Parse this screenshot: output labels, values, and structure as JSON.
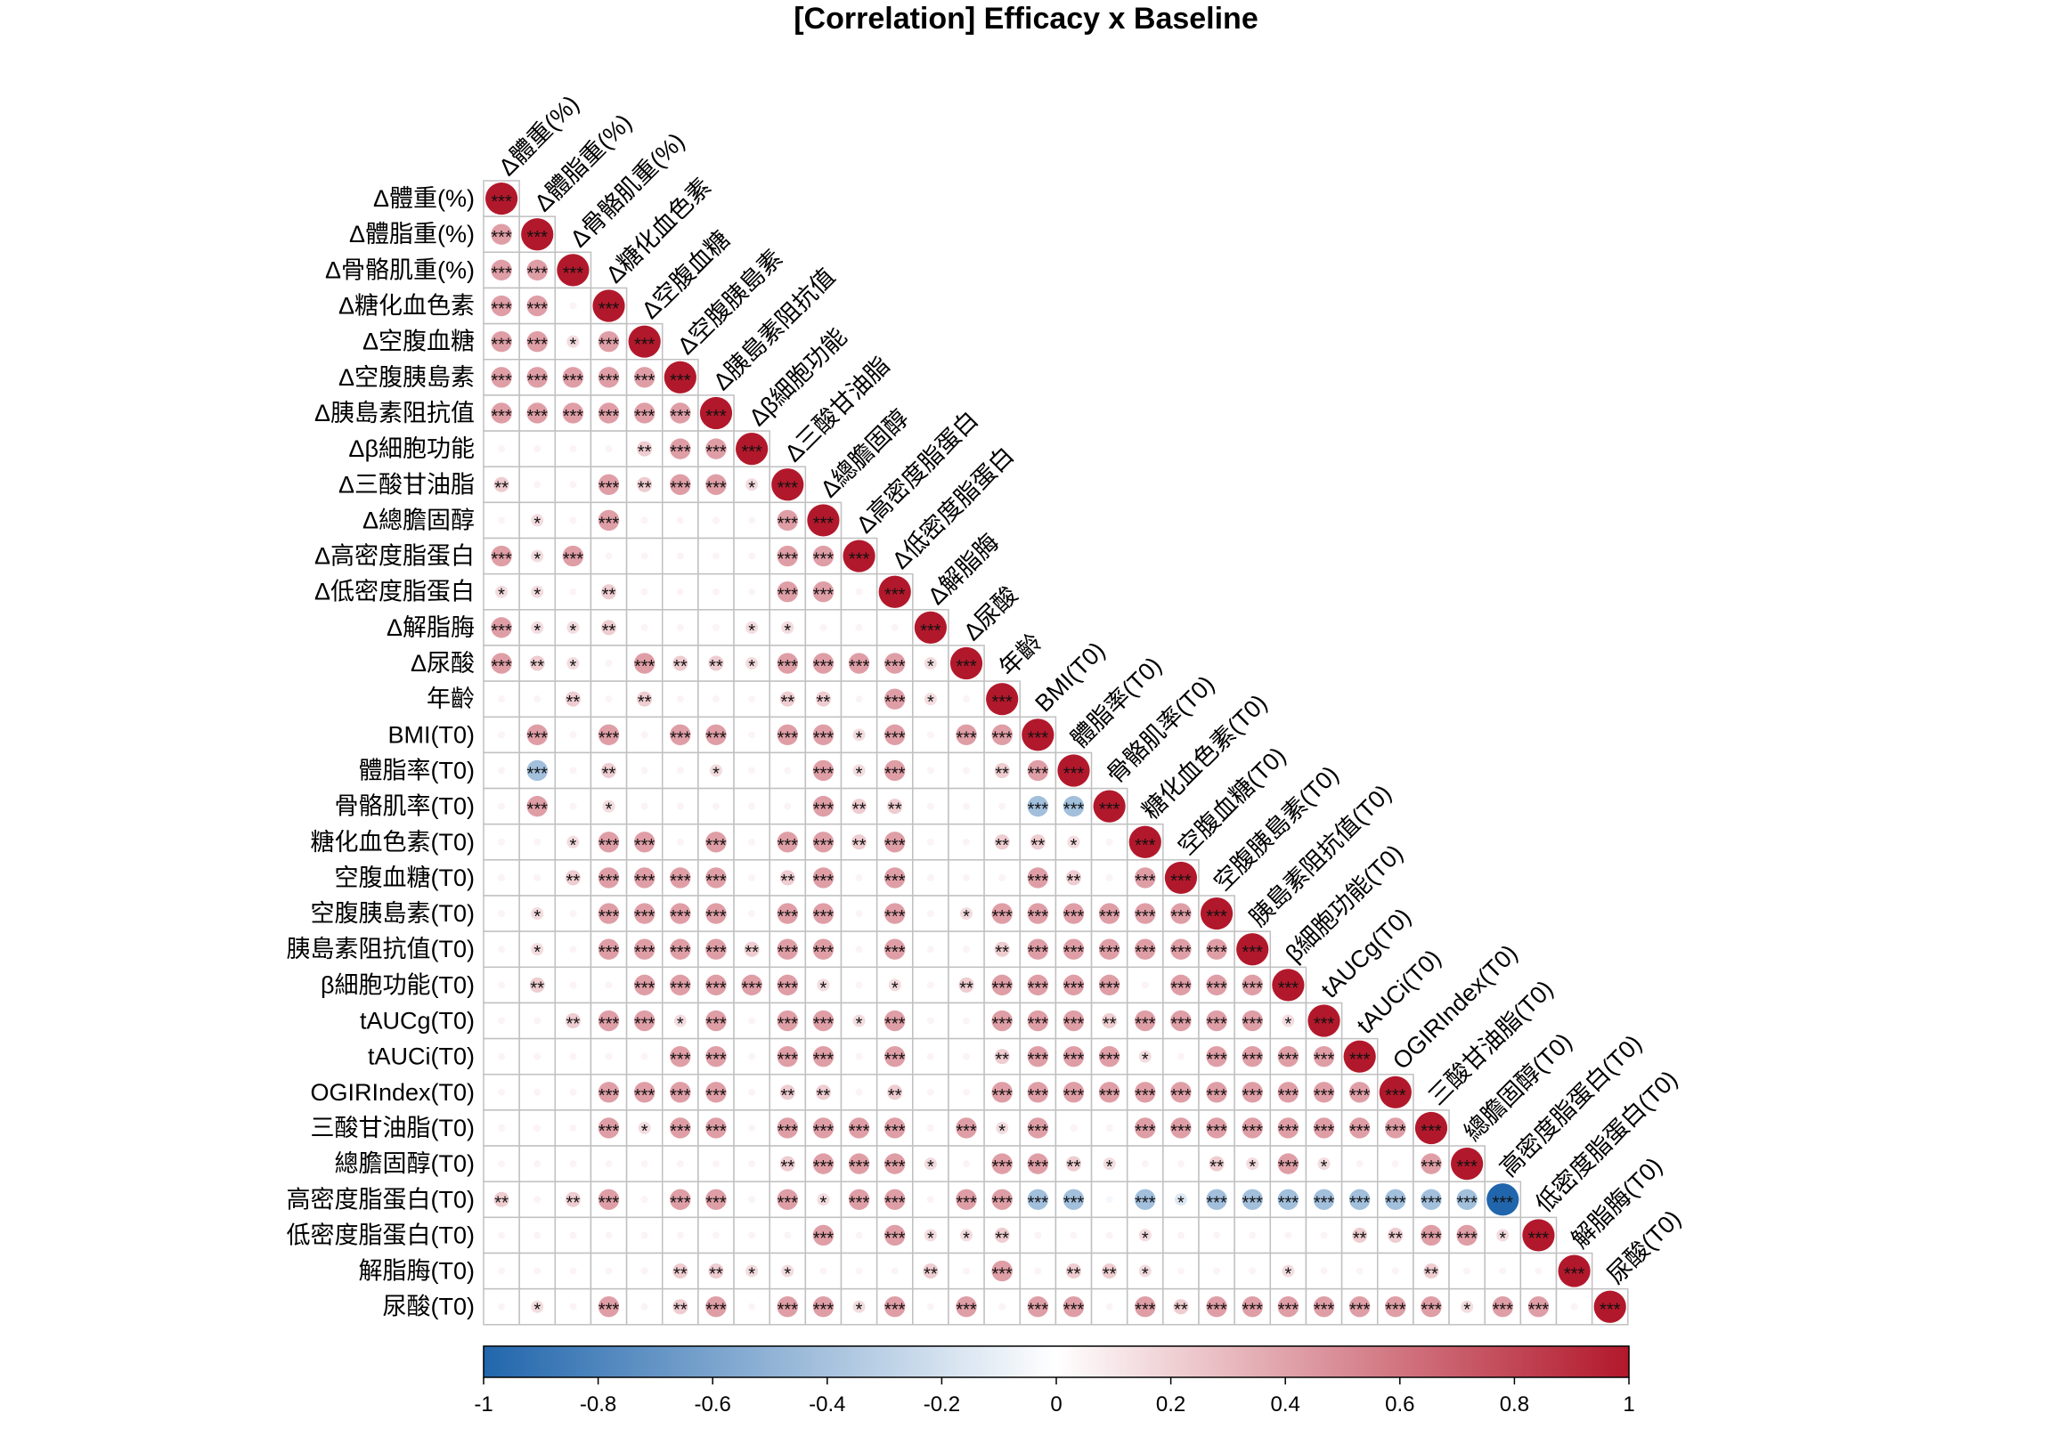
{
  "chart_title": "[Correlation] Efficacy x Baseline",
  "chart_data": {
    "type": "heatmap",
    "subtype": "correlation-matrix-lower-triangle",
    "title": "[Correlation] Efficacy x Baseline",
    "variables": [
      "Δ體重(%)",
      "Δ體脂重(%)",
      "Δ骨骼肌重(%)",
      "Δ糖化血色素",
      "Δ空腹血糖",
      "Δ空腹胰島素",
      "Δ胰島素阻抗值",
      "Δβ細胞功能",
      "Δ三酸甘油脂",
      "Δ總膽固醇",
      "Δ高密度脂蛋白",
      "Δ低密度脂蛋白",
      "Δ解脂脢",
      "Δ尿酸",
      "年齡",
      "BMI(T0)",
      "體脂率(T0)",
      "骨骼肌率(T0)",
      "糖化血色素(T0)",
      "空腹血糖(T0)",
      "空腹胰島素(T0)",
      "胰島素阻抗值(T0)",
      "β細胞功能(T0)",
      "tAUCg(T0)",
      "tAUCi(T0)",
      "OGIRIndex(T0)",
      "三酸甘油脂(T0)",
      "總膽固醇(T0)",
      "高密度脂蛋白(T0)",
      "低密度脂蛋白(T0)",
      "解脂脢(T0)",
      "尿酸(T0)"
    ],
    "significance_rows": [
      [
        "***"
      ],
      [
        "***",
        "***"
      ],
      [
        "***",
        "***",
        "***"
      ],
      [
        "***",
        "***",
        "",
        "***"
      ],
      [
        "***",
        "***",
        "*",
        "***",
        "***"
      ],
      [
        "***",
        "***",
        "***",
        "***",
        "***",
        "***"
      ],
      [
        "***",
        "***",
        "***",
        "***",
        "***",
        "***",
        "***"
      ],
      [
        "",
        "",
        "",
        "",
        "**",
        "***",
        "***",
        "***"
      ],
      [
        "**",
        "",
        "",
        "***",
        "**",
        "***",
        "***",
        "*",
        "***"
      ],
      [
        "",
        "*",
        "",
        "***",
        "",
        "",
        "",
        "",
        "***",
        "***"
      ],
      [
        "***",
        "*",
        "***",
        "",
        "",
        "",
        "",
        "",
        "***",
        "***",
        "***"
      ],
      [
        "*",
        "*",
        "",
        "**",
        "",
        "",
        "",
        "",
        "***",
        "***",
        "",
        "***"
      ],
      [
        "***",
        "*",
        "*",
        "**",
        "",
        "",
        "",
        "*",
        "*",
        "",
        "",
        "",
        "***"
      ],
      [
        "***",
        "**",
        "*",
        "",
        "***",
        "**",
        "**",
        "*",
        "***",
        "***",
        "***",
        "***",
        "*",
        "***"
      ],
      [
        "",
        "",
        "**",
        "",
        "**",
        "",
        "",
        "",
        "**",
        "**",
        "",
        "***",
        "*",
        "",
        "***"
      ],
      [
        "",
        "***",
        "",
        "***",
        "",
        "***",
        "***",
        "",
        "***",
        "***",
        "*",
        "***",
        "",
        "***",
        "***",
        "***"
      ],
      [
        "",
        "***",
        "",
        "**",
        "",
        "",
        "*",
        "",
        "",
        "***",
        "*",
        "***",
        "",
        "",
        "**",
        "***",
        "***"
      ],
      [
        "",
        "***",
        "",
        "*",
        "",
        "",
        "",
        "",
        "",
        "***",
        "**",
        "**",
        "",
        "",
        "",
        "***",
        "***",
        "***"
      ],
      [
        "",
        "",
        "*",
        "***",
        "***",
        "",
        "***",
        "",
        "***",
        "***",
        "**",
        "***",
        "",
        "",
        "**",
        "**",
        "*",
        "",
        "***"
      ],
      [
        "",
        "",
        "**",
        "***",
        "***",
        "***",
        "***",
        "",
        "**",
        "***",
        "",
        "***",
        "",
        "",
        "",
        "***",
        "**",
        "",
        "***",
        "***"
      ],
      [
        "",
        "*",
        "",
        "***",
        "***",
        "***",
        "***",
        "",
        "***",
        "***",
        "",
        "***",
        "",
        "*",
        "***",
        "***",
        "***",
        "***",
        "***",
        "***",
        "***"
      ],
      [
        "",
        "*",
        "",
        "***",
        "***",
        "***",
        "***",
        "**",
        "***",
        "***",
        "",
        "***",
        "",
        "",
        "**",
        "***",
        "***",
        "***",
        "***",
        "***",
        "***",
        "***"
      ],
      [
        "",
        "**",
        "",
        "",
        "***",
        "***",
        "***",
        "***",
        "***",
        "*",
        "",
        "*",
        "",
        "**",
        "***",
        "***",
        "***",
        "***",
        "",
        "***",
        "***",
        "***",
        "***"
      ],
      [
        "",
        "",
        "**",
        "***",
        "***",
        "*",
        "***",
        "",
        "***",
        "***",
        "*",
        "***",
        "",
        "",
        "***",
        "***",
        "***",
        "**",
        "***",
        "***",
        "***",
        "***",
        "*",
        "***"
      ],
      [
        "",
        "",
        "",
        "",
        "",
        "***",
        "***",
        "",
        "***",
        "***",
        "",
        "***",
        "",
        "",
        "**",
        "***",
        "***",
        "***",
        "*",
        "",
        "***",
        "***",
        "***",
        "***",
        "***"
      ],
      [
        "",
        "",
        "",
        "***",
        "***",
        "***",
        "***",
        "",
        "**",
        "**",
        "",
        "**",
        "",
        "",
        "***",
        "***",
        "***",
        "***",
        "***",
        "***",
        "***",
        "***",
        "***",
        "***",
        "***",
        "***"
      ],
      [
        "",
        "",
        "",
        "***",
        "*",
        "***",
        "***",
        "",
        "***",
        "***",
        "***",
        "***",
        "",
        "***",
        "*",
        "***",
        "",
        "",
        "***",
        "***",
        "***",
        "***",
        "***",
        "***",
        "***",
        "***",
        "***"
      ],
      [
        "",
        "",
        "",
        "",
        "",
        "",
        "",
        "",
        "**",
        "***",
        "***",
        "***",
        "*",
        "",
        "***",
        "***",
        "**",
        "*",
        "",
        "",
        "**",
        "*",
        "***",
        "*",
        "",
        "",
        "***",
        "***"
      ],
      [
        "**",
        "",
        "**",
        "***",
        "",
        "***",
        "***",
        "",
        "***",
        "*",
        "***",
        "***",
        "",
        "***",
        "***",
        "***",
        "***",
        "",
        "***",
        "*",
        "***",
        "***",
        "***",
        "***",
        "***",
        "***",
        "***",
        "***",
        "***"
      ],
      [
        "",
        "",
        "",
        "",
        "",
        "",
        "",
        "",
        "",
        "***",
        "",
        "***",
        "*",
        "*",
        "**",
        "",
        "",
        "",
        "*",
        "",
        "",
        "",
        "",
        "",
        "**",
        "**",
        "***",
        "***",
        "*",
        "***"
      ],
      [
        "",
        "",
        "",
        "",
        "",
        "**",
        "**",
        "*",
        "*",
        "",
        "",
        "",
        "**",
        "",
        "***",
        "",
        "**",
        "**",
        "*",
        "",
        "",
        "",
        "*",
        "",
        "",
        "",
        "**",
        "",
        "",
        "",
        "***"
      ],
      [
        "",
        "*",
        "",
        "***",
        "",
        "**",
        "***",
        "",
        "***",
        "***",
        "*",
        "***",
        "",
        "***",
        "",
        "***",
        "***",
        "",
        "***",
        "**",
        "***",
        "***",
        "***",
        "***",
        "***",
        "***",
        "***",
        "*",
        "***",
        "***",
        "",
        "***"
      ]
    ],
    "color_scale": {
      "min": -1,
      "max": 1,
      "ticks": [
        "-1",
        "-0.8",
        "-0.6",
        "-0.4",
        "-0.2",
        "0",
        "0.2",
        "0.4",
        "0.6",
        "0.8",
        "1"
      ],
      "negative_color": "#2166AC",
      "neutral_color": "#FFFFFF",
      "positive_color": "#B2182B"
    }
  }
}
